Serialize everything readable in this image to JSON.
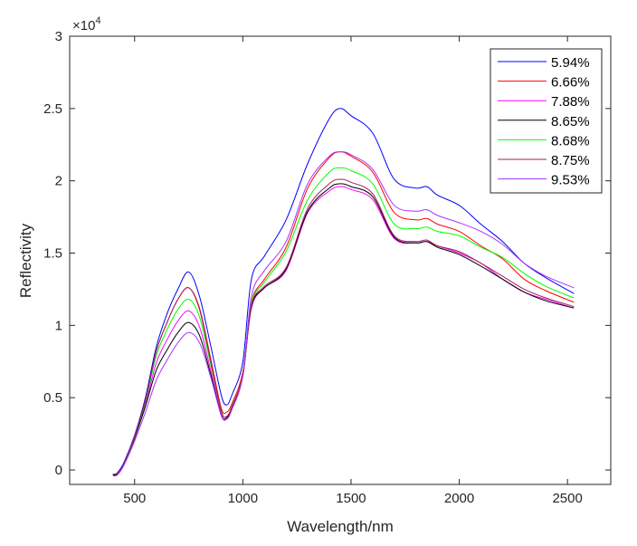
{
  "chart_data": {
    "type": "line",
    "title": "",
    "xlabel": "Wavelength/nm",
    "ylabel": "Reflectivity",
    "y_exponent_label": "×10",
    "y_exponent_power": "4",
    "xlim": [
      200,
      2700
    ],
    "ylim": [
      -1000,
      30000
    ],
    "xticks": [
      500,
      1000,
      1500,
      2000,
      2500
    ],
    "xtick_labels": [
      "500",
      "1000",
      "1500",
      "2000",
      "2500"
    ],
    "yticks": [
      0,
      5000,
      10000,
      15000,
      20000,
      25000,
      30000
    ],
    "ytick_labels": [
      "0",
      "0.5",
      "1",
      "1.5",
      "2",
      "2.5",
      "3"
    ],
    "grid": false,
    "legend_position": "top-right",
    "x": [
      400,
      420,
      450,
      500,
      550,
      600,
      650,
      700,
      750,
      800,
      850,
      900,
      925,
      950,
      1000,
      1040,
      1100,
      1200,
      1300,
      1400,
      1450,
      1500,
      1600,
      1700,
      1800,
      1850,
      1900,
      2000,
      2100,
      2200,
      2300,
      2400,
      2530
    ],
    "series": [
      {
        "name": "5.94%",
        "color": "#0000ff",
        "values": [
          -300,
          -200,
          500,
          2400,
          5000,
          8500,
          10800,
          12500,
          13700,
          12000,
          8700,
          5200,
          4500,
          5200,
          7500,
          13200,
          14800,
          17300,
          21200,
          24300,
          25000,
          24500,
          23300,
          20100,
          19500,
          19600,
          19000,
          18300,
          17000,
          15800,
          14300,
          13300,
          12200
        ]
      },
      {
        "name": "6.66%",
        "color": "#ff0000",
        "values": [
          -300,
          -250,
          400,
          2300,
          4800,
          8200,
          10200,
          11800,
          12600,
          11200,
          7800,
          4300,
          4000,
          4600,
          6800,
          11600,
          13200,
          15400,
          19500,
          21600,
          22000,
          21700,
          20600,
          17800,
          17300,
          17400,
          17000,
          16500,
          15500,
          14600,
          13200,
          12400,
          11600
        ]
      },
      {
        "name": "7.88%",
        "color": "#ff00ff",
        "values": [
          -350,
          -300,
          350,
          2200,
          4500,
          7400,
          9000,
          10300,
          11000,
          9900,
          7000,
          3900,
          3600,
          4300,
          6500,
          11200,
          12600,
          13800,
          17800,
          19300,
          19600,
          19400,
          18700,
          16000,
          15700,
          15800,
          15500,
          15000,
          14300,
          13200,
          12300,
          11800,
          11200
        ]
      },
      {
        "name": "8.65%",
        "color": "#000000",
        "values": [
          -350,
          -300,
          350,
          2200,
          4400,
          6900,
          8300,
          9500,
          10200,
          9300,
          6700,
          3800,
          3600,
          4300,
          6500,
          11300,
          12600,
          13900,
          17900,
          19500,
          19800,
          19600,
          18900,
          16100,
          15700,
          15800,
          15400,
          14900,
          14100,
          13200,
          12300,
          11700,
          11200
        ]
      },
      {
        "name": "8.68%",
        "color": "#00ff00",
        "values": [
          -300,
          -250,
          400,
          2300,
          4700,
          7900,
          9700,
          11100,
          11800,
          10600,
          7400,
          4100,
          3700,
          4400,
          6600,
          11500,
          13000,
          15100,
          18700,
          20600,
          20900,
          20700,
          19800,
          17000,
          16700,
          16800,
          16500,
          16200,
          15400,
          14700,
          13600,
          12700,
          11900
        ]
      },
      {
        "name": "8.75%",
        "color": "#a0205a",
        "values": [
          -300,
          -250,
          400,
          2300,
          4800,
          8200,
          10200,
          11800,
          12600,
          11100,
          7600,
          4100,
          3700,
          4400,
          6600,
          11400,
          12700,
          14000,
          18100,
          19800,
          20100,
          19900,
          19100,
          16200,
          15800,
          15900,
          15500,
          15100,
          14300,
          13400,
          12500,
          11900,
          11300
        ]
      },
      {
        "name": "9.53%",
        "color": "#aa33ff",
        "values": [
          -400,
          -350,
          300,
          2000,
          4000,
          6200,
          7600,
          8800,
          9500,
          8800,
          6500,
          3800,
          3500,
          4200,
          6500,
          12000,
          13800,
          15800,
          19800,
          21700,
          22000,
          21800,
          20800,
          18300,
          17900,
          18000,
          17600,
          17100,
          16500,
          15600,
          14300,
          13400,
          12600
        ]
      }
    ]
  }
}
